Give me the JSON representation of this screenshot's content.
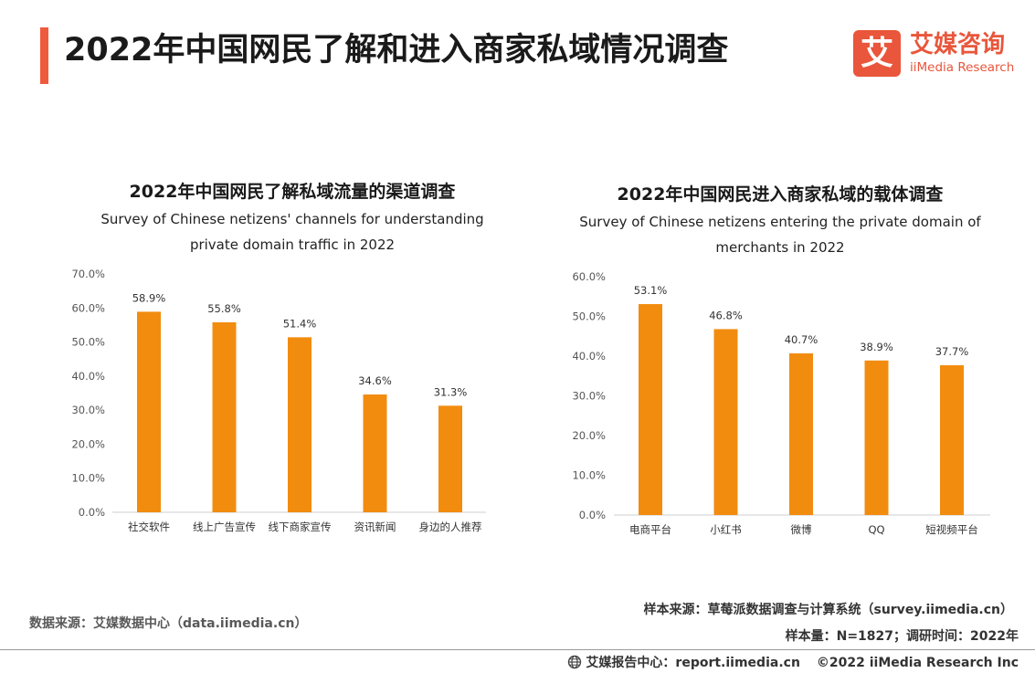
{
  "page": {
    "title": "2022年中国网民了解和进入商家私域情况调查",
    "accent_color": "#f05a3c",
    "bar_color": "#f28c0f"
  },
  "logo": {
    "glyph": "艾",
    "cn": "艾媒咨询",
    "en": "iiMedia Research",
    "color": "#e9563b"
  },
  "chart_data": [
    {
      "type": "bar",
      "title": "2022年中国网民了解私域流量的渠道调查",
      "subtitle_lines": [
        "Survey of Chinese netizens' channels for understanding",
        "private domain traffic in 2022"
      ],
      "categories": [
        "社交软件",
        "线上广告宣传",
        "线下商家宣传",
        "资讯新闻",
        "身边的人推荐"
      ],
      "values": [
        58.9,
        55.8,
        51.4,
        34.6,
        31.3
      ],
      "value_labels": [
        "58.9%",
        "55.8%",
        "51.4%",
        "34.6%",
        "31.3%"
      ],
      "ylim": [
        0,
        70
      ],
      "yticks": [
        "0.0%",
        "10.0%",
        "20.0%",
        "30.0%",
        "40.0%",
        "50.0%",
        "60.0%",
        "70.0%"
      ],
      "grid": false
    },
    {
      "type": "bar",
      "title": "2022年中国网民进入商家私域的载体调查",
      "subtitle_lines": [
        "Survey of Chinese netizens entering the private domain of",
        "merchants in 2022"
      ],
      "categories": [
        "电商平台",
        "小红书",
        "微博",
        "QQ",
        "短视频平台"
      ],
      "values": [
        53.1,
        46.8,
        40.7,
        38.9,
        37.7
      ],
      "value_labels": [
        "53.1%",
        "46.8%",
        "40.7%",
        "38.9%",
        "37.7%"
      ],
      "ylim": [
        0,
        60
      ],
      "yticks": [
        "0.0%",
        "10.0%",
        "20.0%",
        "30.0%",
        "40.0%",
        "50.0%",
        "60.0%"
      ],
      "grid": false
    }
  ],
  "sources": {
    "left": "数据来源：艾媒数据中心（data.iimedia.cn）",
    "right_line1": "样本来源：草莓派数据调查与计算系统（survey.iimedia.cn）",
    "right_line2": "样本量：N=1827；调研时间：2022年"
  },
  "footer": {
    "report": "艾媒报告中心：report.iimedia.cn",
    "copyright": "©2022  iiMedia Research  Inc",
    "icon": "globe-icon"
  }
}
